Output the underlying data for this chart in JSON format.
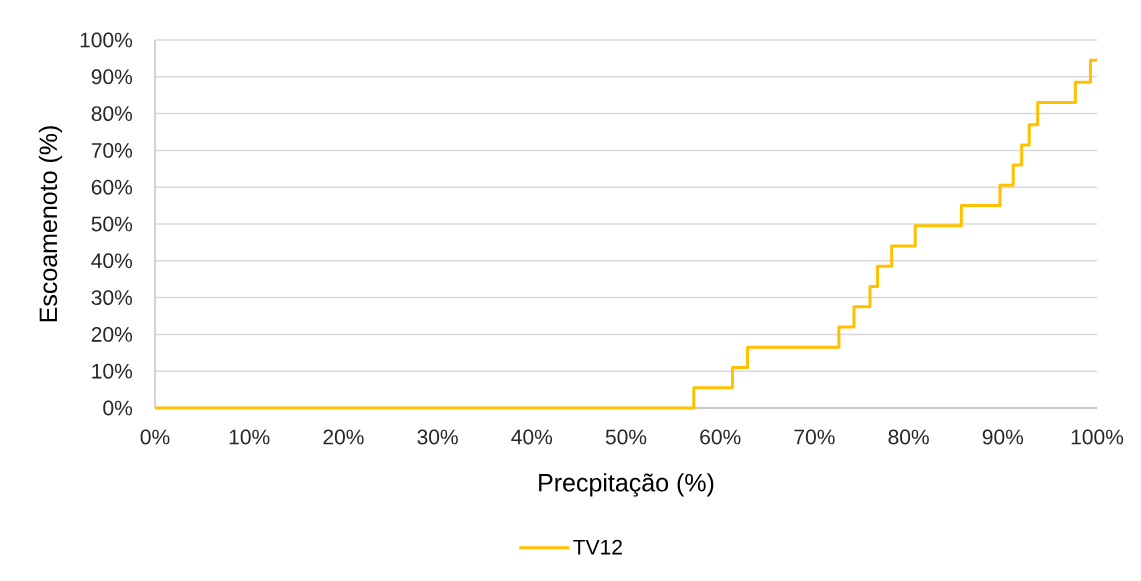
{
  "chart_data": {
    "type": "step",
    "xlabel": "Precpitação (%)",
    "ylabel": "Escoamenoto (%)",
    "x": [
      0,
      57.2,
      61.3,
      62.9,
      72.6,
      74.2,
      75.9,
      76.7,
      78.2,
      80.7,
      85.6,
      89.7,
      91.1,
      92.0,
      92.8,
      93.7,
      97.7,
      99.3,
      100
    ],
    "series": [
      {
        "name": "TV12",
        "color": "#ffc000",
        "values": [
          0,
          5.5,
          11,
          16.5,
          22,
          27.5,
          33,
          38.5,
          44,
          49.5,
          55,
          60.5,
          66,
          71.5,
          77,
          83,
          88.5,
          94.5,
          94.5
        ]
      }
    ],
    "xlim": [
      0,
      100
    ],
    "ylim": [
      0,
      100
    ],
    "xticks": [
      {
        "value": 0,
        "label": "0%"
      },
      {
        "value": 10,
        "label": "10%"
      },
      {
        "value": 20,
        "label": "20%"
      },
      {
        "value": 30,
        "label": "30%"
      },
      {
        "value": 40,
        "label": "40%"
      },
      {
        "value": 50,
        "label": "50%"
      },
      {
        "value": 60,
        "label": "60%"
      },
      {
        "value": 70,
        "label": "70%"
      },
      {
        "value": 80,
        "label": "80%"
      },
      {
        "value": 90,
        "label": "90%"
      },
      {
        "value": 100,
        "label": "100%"
      }
    ],
    "yticks": [
      {
        "value": 0,
        "label": "0%"
      },
      {
        "value": 10,
        "label": "10%"
      },
      {
        "value": 20,
        "label": "20%"
      },
      {
        "value": 30,
        "label": "30%"
      },
      {
        "value": 40,
        "label": "40%"
      },
      {
        "value": 50,
        "label": "50%"
      },
      {
        "value": 60,
        "label": "60%"
      },
      {
        "value": 70,
        "label": "70%"
      },
      {
        "value": 80,
        "label": "80%"
      },
      {
        "value": 90,
        "label": "90%"
      },
      {
        "value": 100,
        "label": "100%"
      }
    ],
    "grid": "y",
    "legend": "bottom"
  }
}
